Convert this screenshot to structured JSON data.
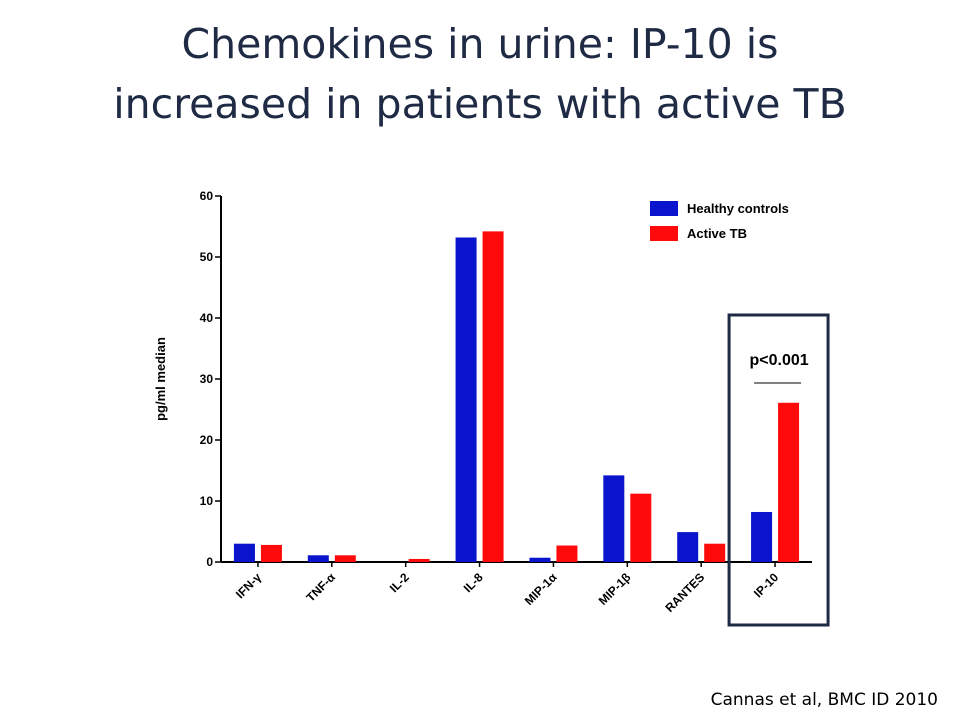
{
  "slide": {
    "title_line1": "Chemokines in urine: IP-10 is",
    "title_line2": "increased in patients with active TB",
    "citation": "Cannas et al, BMC ID 2010"
  },
  "chart_data": {
    "type": "bar",
    "title": "",
    "xlabel": "",
    "ylabel": "pg/ml median",
    "ylim": [
      0,
      60
    ],
    "yticks": [
      0,
      10,
      20,
      30,
      40,
      50,
      60
    ],
    "categories": [
      "IFN-γ",
      "TNF-α",
      "IL-2",
      "IL-8",
      "MIP-1α",
      "MIP-1β",
      "RANTES",
      "IP-10"
    ],
    "series": [
      {
        "name": "Healthy controls",
        "color": "#0a14cc",
        "values": [
          3.0,
          1.1,
          0.0,
          53.2,
          0.7,
          14.2,
          4.9,
          8.2
        ]
      },
      {
        "name": "Active TB",
        "color": "#ff0a0a",
        "values": [
          2.8,
          1.1,
          0.5,
          54.2,
          2.7,
          11.2,
          3.0,
          26.1
        ]
      }
    ],
    "legend_position": "top-right",
    "grid": false,
    "annotation": {
      "text": "p<0.001",
      "category": "IP-10",
      "highlight_box_color": "#1f2a44"
    }
  }
}
